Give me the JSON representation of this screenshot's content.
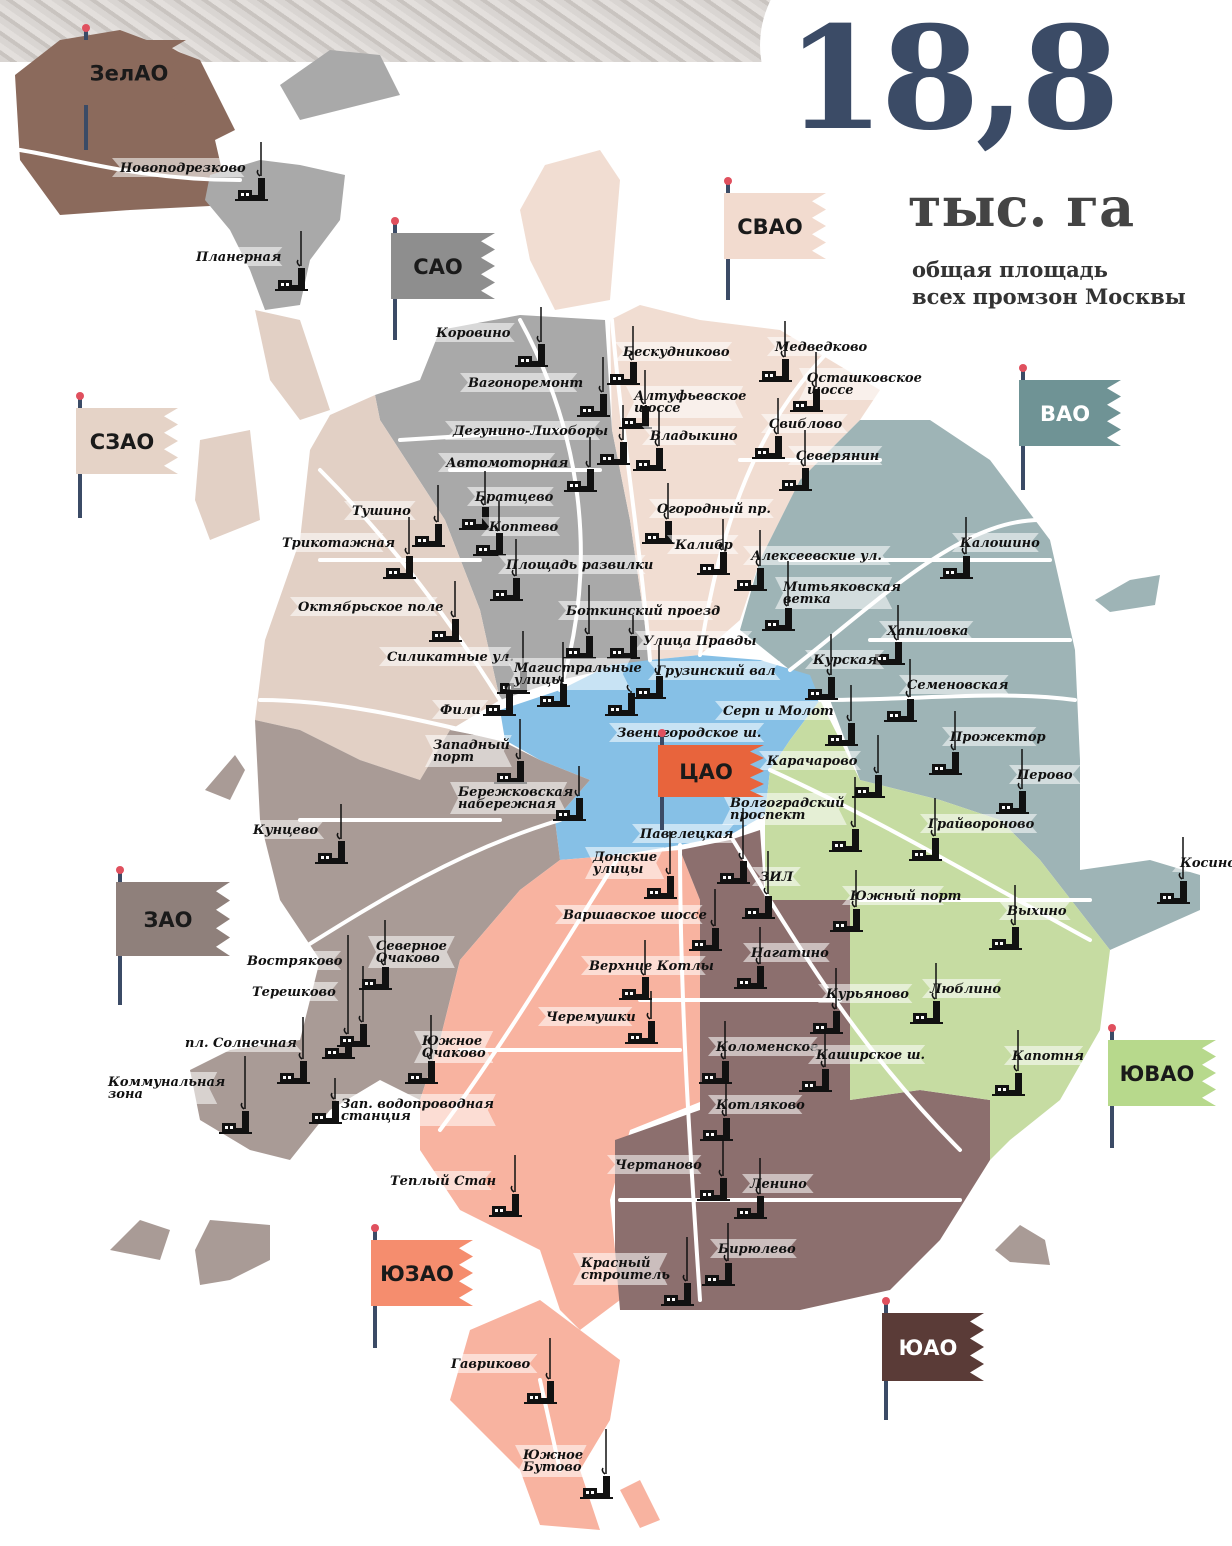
{
  "header": {
    "value": "18,8",
    "unit": "тыс. га",
    "caption_line1": "общая площадь",
    "caption_line2": "всех промзон Москвы"
  },
  "colors": {
    "title": "#3b4b66",
    "ЗелАО": "#8b6a5c",
    "САО": "#a9a9a9",
    "СВАО": "#f1ddd2",
    "СЗАО": "#e2d0c5",
    "ВАО": "#9eb4b6",
    "ЦАО": "#86c0e6",
    "ЗАО": "#a99b96",
    "ЮЗАО": "#f8b3a0",
    "ЮАО": "#8c6f6e",
    "ЮВАО": "#c6dca2"
  },
  "districts": [
    {
      "name": "ЗелАО",
      "flag_color": "#8b6a5c",
      "text_color": "#1a1a1a"
    },
    {
      "name": "САО",
      "flag_color": "#8e8e8e",
      "text_color": "#1a1a1a"
    },
    {
      "name": "СВАО",
      "flag_color": "#f2dbcf",
      "text_color": "#1a1a1a"
    },
    {
      "name": "СЗАО",
      "flag_color": "#e5d3c7",
      "text_color": "#1a1a1a"
    },
    {
      "name": "ВАО",
      "flag_color": "#6f9395",
      "text_color": "#ffffff"
    },
    {
      "name": "ЦАО",
      "flag_color": "#e8643c",
      "text_color": "#1a1a1a"
    },
    {
      "name": "ЗАО",
      "flag_color": "#8f807b",
      "text_color": "#1a1a1a"
    },
    {
      "name": "ЮВАО",
      "flag_color": "#b7d98c",
      "text_color": "#1a1a1a"
    },
    {
      "name": "ЮЗАО",
      "flag_color": "#f58d6e",
      "text_color": "#1a1a1a"
    },
    {
      "name": "ЮАО",
      "flag_color": "#5a3b37",
      "text_color": "#ffffff"
    }
  ],
  "zones": [
    [
      "Новоподрезково"
    ],
    [
      "Планерная"
    ],
    [
      "Коровино"
    ],
    [
      "Вагоноремонт"
    ],
    [
      "Бескудниково"
    ],
    [
      "Алтуфьевское",
      "шоссе"
    ],
    [
      "Дегунино-Лихоборы"
    ],
    [
      "Владыкино"
    ],
    [
      "Медведково"
    ],
    [
      "Осташковское",
      "шоссе"
    ],
    [
      "Свиблово"
    ],
    [
      "Северянин"
    ],
    [
      "Автомоторная"
    ],
    [
      "Братцево"
    ],
    [
      "Коптево"
    ],
    [
      "Тушино"
    ],
    [
      "Трикотажная"
    ],
    [
      "Огородный пр."
    ],
    [
      "Калибр"
    ],
    [
      "Алексеевские ул."
    ],
    [
      "Площадь развилки"
    ],
    [
      "Калошино"
    ],
    [
      "Митьяковская",
      "ветка"
    ],
    [
      "Октябрьское поле"
    ],
    [
      "Боткинский проезд"
    ],
    [
      "Хапиловка"
    ],
    [
      "Улица Правды"
    ],
    [
      "Силикатные ул."
    ],
    [
      "Курская"
    ],
    [
      "Магистральные",
      "улицы"
    ],
    [
      "Грузинский вал"
    ],
    [
      "Семеновская"
    ],
    [
      "Фили"
    ],
    [
      "Серп и Молот"
    ],
    [
      "Западный",
      "порт"
    ],
    [
      "Звенигородское ш."
    ],
    [
      "Прожектор"
    ],
    [
      "Карачарово"
    ],
    [
      "Перово"
    ],
    [
      "Бережковская",
      "набережная"
    ],
    [
      "Волгоградский",
      "проспект"
    ],
    [
      "Кунцево"
    ],
    [
      "Грайвороново"
    ],
    [
      "Павелецкая"
    ],
    [
      "Донские",
      "улицы"
    ],
    [
      "Косино"
    ],
    [
      "ЗИЛ"
    ],
    [
      "Южный порт"
    ],
    [
      "Выхино"
    ],
    [
      "Варшавское шоссе"
    ],
    [
      "Северное",
      "Очаково"
    ],
    [
      "Востряково"
    ],
    [
      "Нагатино"
    ],
    [
      "Верхние Котлы"
    ],
    [
      "Терешково"
    ],
    [
      "Курьяново"
    ],
    [
      "Люблино"
    ],
    [
      "Черемушки"
    ],
    [
      "пл. Солнечная"
    ],
    [
      "Южное",
      "Очаково"
    ],
    [
      "Коломенское"
    ],
    [
      "Каширское ш."
    ],
    [
      "Капотня"
    ],
    [
      "Коммунальная",
      "зона"
    ],
    [
      "Зап. водопроводная",
      "станция"
    ],
    [
      "Котляково"
    ],
    [
      "Теплый Стан"
    ],
    [
      "Чертаново"
    ],
    [
      "Ленино"
    ],
    [
      "Бирюлево"
    ],
    [
      "Красный",
      "строитель"
    ],
    [
      "Гавриково"
    ],
    [
      "Южное",
      "Бутово"
    ]
  ]
}
